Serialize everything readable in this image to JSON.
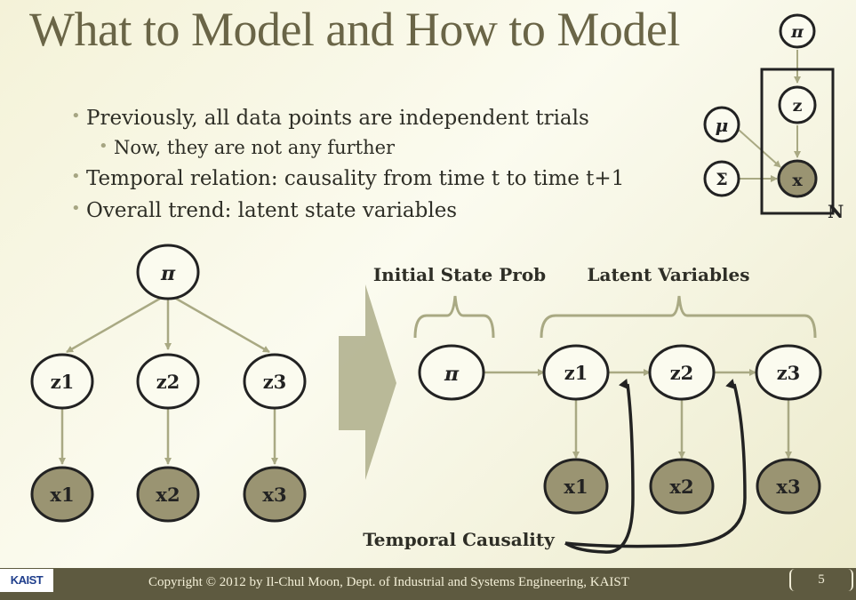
{
  "slide": {
    "title": "What to Model and How to Model",
    "bullets": [
      "Previously, all data points are independent trials",
      "Now, they are not any further",
      "Temporal relation: causality from time t to time t+1",
      "Overall trend: latent state variables"
    ]
  },
  "plate_model": {
    "nodes": {
      "pi": "π",
      "z": "z",
      "x": "x",
      "mu": "μ",
      "sigma": "Σ"
    },
    "plate_label": "N"
  },
  "left_graph": {
    "root": "π",
    "latent": [
      "z1",
      "z2",
      "z3"
    ],
    "observed": [
      "x1",
      "x2",
      "x3"
    ]
  },
  "right_graph": {
    "initial_label": "Initial State Prob",
    "latent_label": "Latent Variables",
    "root": "π",
    "latent": [
      "z1",
      "z2",
      "z3"
    ],
    "observed": [
      "x1",
      "x2",
      "x3"
    ],
    "causality_label": "Temporal Causality"
  },
  "footer": {
    "logo": "KAIST",
    "copyright": "Copyright © 2012 by Il-Chul Moon, Dept. of Industrial and Systems Engineering, KAIST",
    "page": "5"
  },
  "colors": {
    "title": "#6a6547",
    "arrow": "#a9a983",
    "observed_fill": "#9a9472",
    "footer_bg": "#5e5a40"
  }
}
